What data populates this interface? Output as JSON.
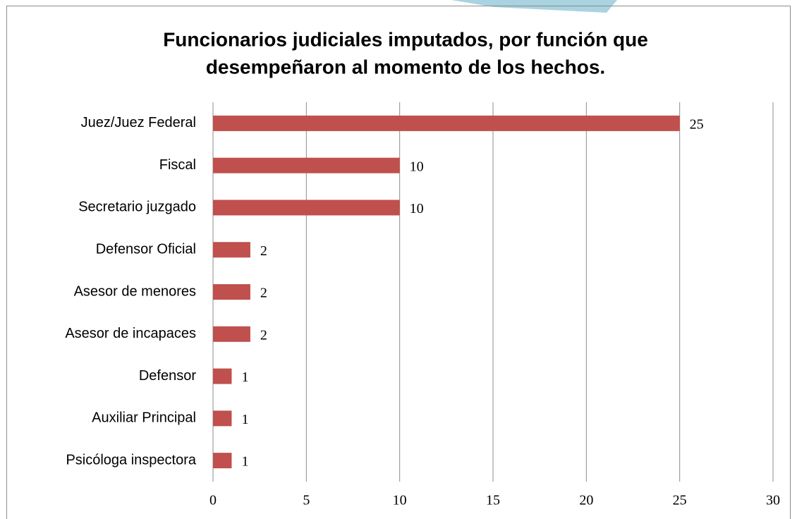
{
  "chart_data": {
    "type": "bar",
    "orientation": "horizontal",
    "title": [
      "Funcionarios judiciales imputados, por función que",
      "desempeñaron al momento de los hechos."
    ],
    "categories": [
      "Juez/Juez Federal",
      "Fiscal",
      "Secretario juzgado",
      "Defensor Oficial",
      "Asesor de menores",
      "Asesor de incapaces",
      "Defensor",
      "Auxiliar Principal",
      "Psicóloga inspectora"
    ],
    "values": [
      25,
      10,
      10,
      2,
      2,
      2,
      1,
      1,
      1
    ],
    "color": "#c0504d",
    "xlim": [
      0,
      30
    ],
    "xticks": [
      0,
      5,
      10,
      15,
      20,
      25,
      30
    ],
    "grid": true
  }
}
